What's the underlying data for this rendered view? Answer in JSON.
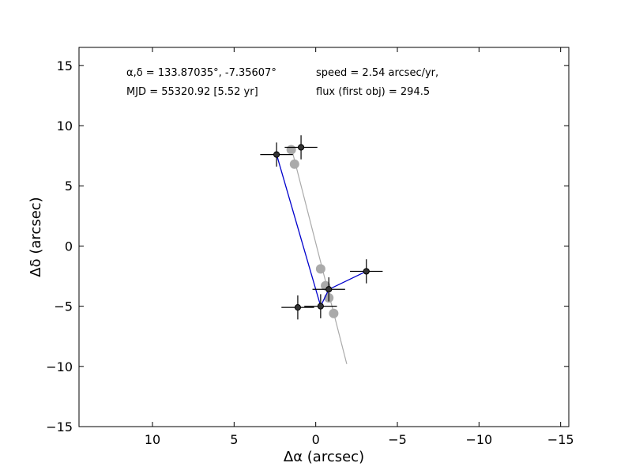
{
  "chart_data": {
    "type": "scatter",
    "xlabel": "Δα (arcsec)",
    "ylabel": "Δδ (arcsec)",
    "xlim": [
      14.5,
      -15.5
    ],
    "ylim": [
      -15,
      16.5
    ],
    "x_ticks": [
      10,
      5,
      0,
      -5,
      -10,
      -15
    ],
    "x_tick_labels": [
      "10",
      "5",
      "0",
      "−5",
      "−10",
      "−15"
    ],
    "y_ticks": [
      15,
      10,
      5,
      0,
      -5,
      -10,
      -15
    ],
    "y_tick_labels": [
      "15",
      "10",
      "5",
      "0",
      "−5",
      "−10",
      "−15"
    ],
    "annotations": [
      "α,δ = 133.87035°, -7.35607°",
      "MJD = 55320.92 [5.52 yr]",
      "speed = 2.54 arcsec/yr,",
      "flux (first obj) = 294.5"
    ],
    "series": [
      {
        "role": "predicted-track",
        "color": "#aaaaaa",
        "line": [
          [
            1.5,
            8.2
          ],
          [
            -1.9,
            -9.8
          ]
        ],
        "points": [
          [
            1.5,
            8.0
          ],
          [
            1.3,
            6.8
          ],
          [
            -0.3,
            -1.9
          ],
          [
            -0.6,
            -3.3
          ],
          [
            -0.8,
            -4.3
          ],
          [
            -1.1,
            -5.6
          ]
        ]
      },
      {
        "role": "observed",
        "color": "#0000cc",
        "points": [
          {
            "x": 2.4,
            "y": 7.6,
            "xerr": 1.0,
            "yerr": 1.0
          },
          {
            "x": 0.9,
            "y": 8.2,
            "xerr": 1.0,
            "yerr": 1.0
          },
          {
            "x": -3.1,
            "y": -2.1,
            "xerr": 1.0,
            "yerr": 1.0
          },
          {
            "x": -0.8,
            "y": -3.6,
            "xerr": 1.0,
            "yerr": 1.0
          },
          {
            "x": -0.3,
            "y": -5.0,
            "xerr": 1.0,
            "yerr": 1.0
          },
          {
            "x": 1.1,
            "y": -5.1,
            "xerr": 1.0,
            "yerr": 1.0
          }
        ],
        "path": [
          [
            2.4,
            7.6
          ],
          [
            -0.3,
            -5.0
          ],
          [
            -0.8,
            -3.6
          ],
          [
            -3.1,
            -2.1
          ]
        ]
      }
    ]
  }
}
